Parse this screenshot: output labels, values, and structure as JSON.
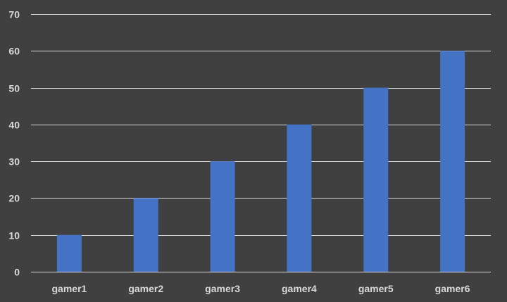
{
  "chart_data": {
    "type": "bar",
    "title": "",
    "xlabel": "",
    "ylabel": "",
    "categories": [
      "gamer1",
      "gamer2",
      "gamer3",
      "gamer4",
      "gamer5",
      "gamer6"
    ],
    "values": [
      10,
      20,
      30,
      40,
      50,
      60
    ],
    "ylim": [
      0,
      70
    ],
    "yticks": [
      0,
      10,
      20,
      30,
      40,
      50,
      60,
      70
    ],
    "grid": true,
    "legend": "none",
    "colors": {
      "background": "#404040",
      "bar": "#4472c4",
      "grid": "#d9d9d9",
      "text": "#d9d9d9"
    }
  }
}
